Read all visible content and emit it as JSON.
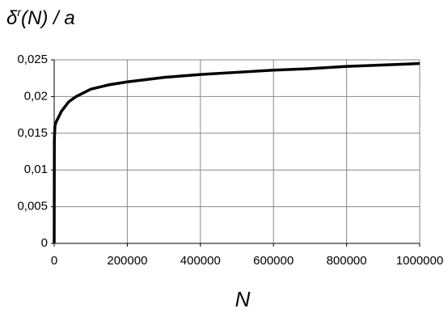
{
  "chart_data": {
    "type": "line",
    "ylabel": [
      "δ",
      "r",
      "(N) / a"
    ],
    "xlabel": "N",
    "x": [
      0,
      500,
      2000,
      5000,
      10000,
      20000,
      40000,
      60000,
      100000,
      150000,
      200000,
      300000,
      400000,
      500000,
      600000,
      700000,
      800000,
      900000,
      1000000
    ],
    "series": [
      {
        "color": "#000000",
        "values": [
          0,
          0.014,
          0.016,
          0.0165,
          0.017,
          0.018,
          0.0193,
          0.02,
          0.021,
          0.0216,
          0.022,
          0.0226,
          0.023,
          0.0233,
          0.0236,
          0.0238,
          0.0241,
          0.0243,
          0.0245
        ]
      }
    ],
    "xlim": [
      0,
      1000000
    ],
    "xticks": [
      0,
      200000,
      400000,
      600000,
      800000,
      1000000
    ],
    "ylim": [
      0,
      0.025
    ],
    "yticks": [
      0,
      {
        "value": 0.005,
        "label": "0,005"
      },
      {
        "value": 0.01,
        "label": "0,01"
      },
      {
        "value": 0.015,
        "label": "0,015"
      },
      {
        "value": 0.02,
        "label": "0,02"
      },
      {
        "value": 0.025,
        "label": "0,025"
      }
    ],
    "grid": true
  }
}
